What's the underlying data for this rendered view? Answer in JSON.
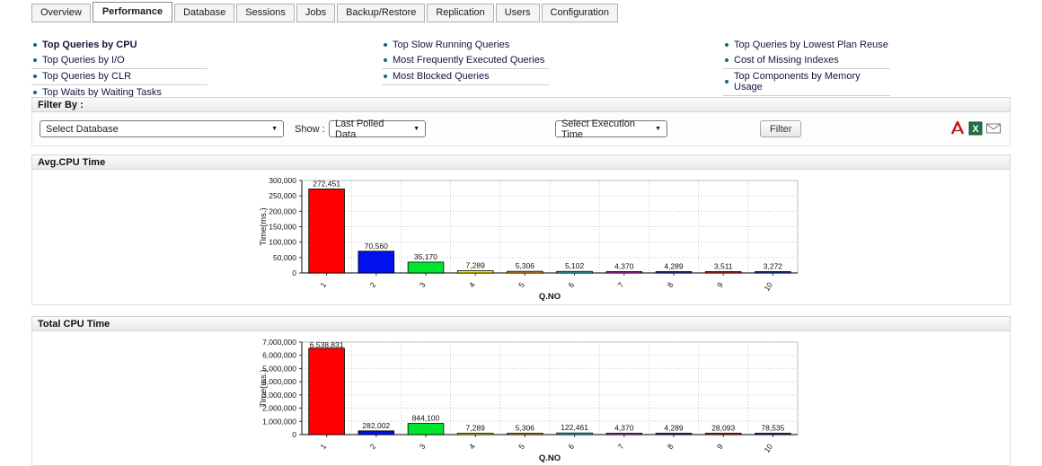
{
  "tabs": {
    "items": [
      {
        "label": "Overview",
        "active": false
      },
      {
        "label": "Performance",
        "active": true
      },
      {
        "label": "Database",
        "active": false
      },
      {
        "label": "Sessions",
        "active": false
      },
      {
        "label": "Jobs",
        "active": false
      },
      {
        "label": "Backup/Restore",
        "active": false
      },
      {
        "label": "Replication",
        "active": false
      },
      {
        "label": "Users",
        "active": false
      },
      {
        "label": "Configuration",
        "active": false
      }
    ]
  },
  "quick_links": {
    "columns": [
      {
        "items": [
          {
            "label": "Top Queries by CPU",
            "bold": true,
            "separator": false
          },
          {
            "label": "Top Queries by I/O",
            "bold": false,
            "separator": true
          },
          {
            "label": "Top Queries by CLR",
            "bold": false,
            "separator": true
          },
          {
            "label": "Top Waits by Waiting Tasks",
            "bold": false,
            "separator": true
          }
        ]
      },
      {
        "items": [
          {
            "label": "Top Slow Running Queries",
            "bold": false,
            "separator": false
          },
          {
            "label": "Most Frequently Executed Queries",
            "bold": false,
            "separator": true
          },
          {
            "label": "Most Blocked Queries",
            "bold": false,
            "separator": true
          }
        ]
      },
      {
        "items": [
          {
            "label": "Top Queries by Lowest Plan Reuse",
            "bold": false,
            "separator": false
          },
          {
            "label": "Cost of Missing Indexes",
            "bold": false,
            "separator": true
          },
          {
            "label": "Top Components by Memory Usage",
            "bold": false,
            "separator": true
          }
        ]
      }
    ]
  },
  "filter": {
    "section_label": "Filter By :",
    "database_select_value": "Select Database",
    "show_label": "Show :",
    "show_select_value": "Last Polled Data",
    "execution_select_value": "Select Execution Time",
    "filter_button_label": "Filter",
    "export_icons": [
      {
        "name": "pdf-export-icon",
        "type": "pdf"
      },
      {
        "name": "excel-export-icon",
        "type": "excel"
      },
      {
        "name": "email-icon",
        "type": "email"
      }
    ]
  },
  "colors": {
    "bar_palette": [
      "#ff0000",
      "#0011ee",
      "#00e62e",
      "#fff200",
      "#ffa928",
      "#3fc7c7",
      "#c433c4",
      "#2b3a9e",
      "#c03028",
      "#223a9e"
    ],
    "grid": "#c8c8c8",
    "axis": "#333333"
  },
  "chart_data": [
    {
      "type": "bar",
      "title": "Avg.CPU Time",
      "categories": [
        "1",
        "2",
        "3",
        "4",
        "5",
        "6",
        "7",
        "8",
        "9",
        "10"
      ],
      "values": [
        272451,
        70560,
        35170,
        7289,
        5306,
        5102,
        4370,
        4289,
        3511,
        3272
      ],
      "labels": [
        "272,451",
        "70,560",
        "35,170",
        "7,289",
        "5,306",
        "5,102",
        "4,370",
        "4,289",
        "3,511",
        "3,272"
      ],
      "xlabel": "Q.NO",
      "ylabel": "Time(ms.)",
      "ylim": [
        0,
        300000
      ],
      "ytick_step": 50000,
      "grid": true,
      "legend_position": "none"
    },
    {
      "type": "bar",
      "title": "Total CPU Time",
      "categories": [
        "1",
        "2",
        "3",
        "4",
        "5",
        "6",
        "7",
        "8",
        "9",
        "10"
      ],
      "values": [
        6538831,
        282002,
        844100,
        7289,
        5306,
        122461,
        4370,
        4289,
        28093,
        78535
      ],
      "labels": [
        "6,538,831",
        "282,002",
        "844,100",
        "7,289",
        "5,306",
        "122,461",
        "4,370",
        "4,289",
        "28,093",
        "78,535"
      ],
      "xlabel": "Q.NO",
      "ylabel": "Time(ms.)",
      "ylim": [
        0,
        7000000
      ],
      "ytick_step": 1000000,
      "grid": true,
      "legend_position": "none"
    }
  ]
}
